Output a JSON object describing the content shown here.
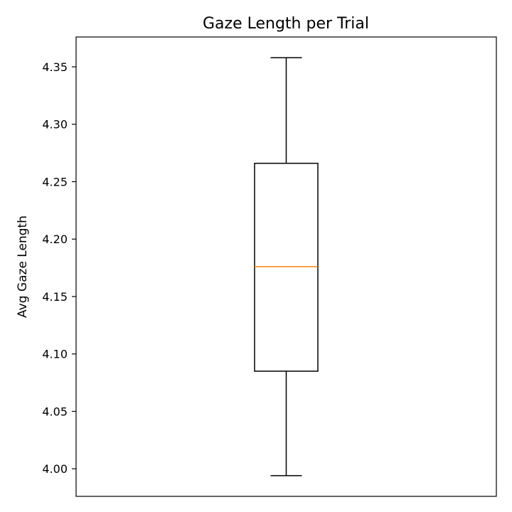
{
  "chart_data": {
    "type": "box",
    "title": "Gaze Length per Trial",
    "xlabel": "",
    "ylabel": "Avg Gaze Length",
    "ylim": [
      3.976,
      4.376
    ],
    "yticks": [
      "4.00",
      "4.05",
      "4.10",
      "4.15",
      "4.20",
      "4.25",
      "4.30",
      "4.35"
    ],
    "grid": false,
    "series": [
      {
        "whisker_low": 3.994,
        "q1": 4.085,
        "median": 4.176,
        "q3": 4.266,
        "whisker_high": 4.358
      }
    ],
    "colors": {
      "box": "#000000",
      "median": "#ff7f0e"
    }
  }
}
